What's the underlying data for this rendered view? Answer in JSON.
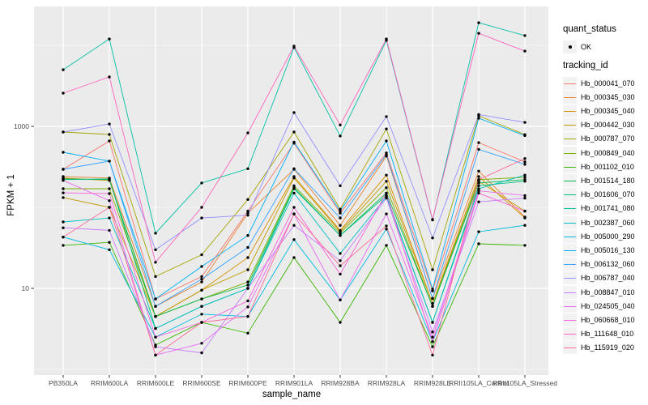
{
  "figure": {
    "x_axis_title": "sample_name",
    "y_axis_title": "FPKM + 1",
    "quant_status_legend": {
      "title": "quant_status",
      "entries": [
        {
          "label": "OK",
          "symbol": "point"
        }
      ]
    },
    "tracking_legend_title": "tracking_id",
    "panel_bg": "#ebebeb",
    "grid_color": "#ffffff",
    "tick_text_color": "#4d4d4d",
    "point_color": "#000000"
  },
  "chart_data": {
    "type": "line",
    "title": "",
    "xlabel": "sample_name",
    "ylabel": "FPKM + 1",
    "y_scale": "log10",
    "y_ticks": [
      1000,
      10
    ],
    "y_minor_ticks": [
      10000,
      100,
      1
    ],
    "ylim_log": [
      0.9,
      28000
    ],
    "grid": true,
    "legend_position": "right",
    "categories": [
      "PB350LA",
      "RRIM600LA",
      "RRIM600LE",
      "RRIM600SE",
      "RRIM600PE",
      "RRIM901LA",
      "RRIM928BA",
      "RRIM928LA",
      "RRIM928LE",
      "RRII105LA_Control",
      "RRII105LA_Stressed"
    ],
    "series": [
      {
        "name": "Hb_000041_070",
        "color": "#F8766D",
        "quant_status": "OK",
        "values": [
          295,
          660,
          7.4,
          14,
          90,
          620,
          85,
          470,
          9.3,
          630,
          365
        ]
      },
      {
        "name": "Hb_000345_030",
        "color": "#EA8331",
        "quant_status": "OK",
        "values": [
          240,
          230,
          6,
          12,
          85,
          295,
          60,
          430,
          7.5,
          280,
          76
        ]
      },
      {
        "name": "Hb_000345_040",
        "color": "#D89000",
        "quant_status": "OK",
        "values": [
          230,
          215,
          4.5,
          9.5,
          24,
          240,
          52,
          250,
          6.5,
          240,
          74
        ]
      },
      {
        "name": "Hb_000442_030",
        "color": "#C09B00",
        "quant_status": "OK",
        "values": [
          132,
          100,
          4.5,
          9.5,
          17,
          230,
          50,
          210,
          6.5,
          210,
          90
        ]
      },
      {
        "name": "Hb_000787_070",
        "color": "#A3A500",
        "quant_status": "OK",
        "values": [
          851,
          794,
          14,
          26,
          125,
          851,
          95,
          930,
          17,
          1350,
          790
        ]
      },
      {
        "name": "Hb_000849_040",
        "color": "#7CAE00",
        "quant_status": "OK",
        "values": [
          170,
          170,
          4.5,
          7.4,
          12,
          185,
          48,
          175,
          6,
          220,
          235
        ]
      },
      {
        "name": "Hb_001102_010",
        "color": "#39B600",
        "quant_status": "OK",
        "values": [
          34,
          37,
          2,
          3.8,
          2.8,
          24,
          3.8,
          34,
          1.9,
          35.5,
          34
        ]
      },
      {
        "name": "Hb_001514_180",
        "color": "#00BB4E",
        "quant_status": "OK",
        "values": [
          225,
          220,
          4.5,
          7.4,
          11,
          175,
          45,
          150,
          6,
          200,
          220
        ]
      },
      {
        "name": "Hb_001606_070",
        "color": "#00BF7D",
        "quant_status": "OK",
        "values": [
          220,
          225,
          3.2,
          6,
          10,
          170,
          45,
          140,
          3.8,
          185,
          210
        ]
      },
      {
        "name": "Hb_001741_080",
        "color": "#00C1A3",
        "quant_status": "OK",
        "values": [
          5000,
          12000,
          48,
          200,
          300,
          9400,
          760,
          11500,
          70,
          19000,
          13200
        ]
      },
      {
        "name": "Hb_002387_060",
        "color": "#00BFC4",
        "quant_status": "OK",
        "values": [
          66,
          74,
          3.2,
          6,
          10,
          150,
          27,
          135,
          3.8,
          170,
          250
        ]
      },
      {
        "name": "Hb_005000_290",
        "color": "#00BAE0",
        "quant_status": "OK",
        "values": [
          43,
          30,
          2.5,
          4.8,
          4.5,
          40,
          7.2,
          54,
          2.2,
          50,
          60
        ]
      },
      {
        "name": "Hb_005016_130",
        "color": "#00B0F6",
        "quant_status": "OK",
        "values": [
          479,
          372,
          7.4,
          18.6,
          45,
          640,
          90,
          660,
          9.8,
          1260,
          770
        ]
      },
      {
        "name": "Hb_006132_060",
        "color": "#35A2FF",
        "quant_status": "OK",
        "values": [
          295,
          372,
          6,
          13,
          32,
          300,
          74,
          450,
          7.5,
          520,
          340
        ]
      },
      {
        "name": "Hb_006787_040",
        "color": "#9590FF",
        "quant_status": "OK",
        "values": [
          851,
          1070,
          30,
          74,
          80,
          1480,
          185,
          1320,
          42,
          1400,
          1120
        ]
      },
      {
        "name": "Hb_008847_010",
        "color": "#C77CFF",
        "quant_status": "OK",
        "values": [
          56,
          52,
          1.9,
          1.6,
          10,
          60,
          22,
          130,
          2.9,
          117,
          130
        ]
      },
      {
        "name": "Hb_024505_040",
        "color": "#E76BF3",
        "quant_status": "OK",
        "values": [
          215,
          121,
          1.5,
          2.1,
          5.9,
          83,
          7.2,
          83,
          2.5,
          160,
          140
        ]
      },
      {
        "name": "Hb_060668_010",
        "color": "#FA62DB",
        "quant_status": "OK",
        "values": [
          151,
          148,
          2.5,
          3.8,
          7,
          100,
          15,
          150,
          2.2,
          150,
          90
        ]
      },
      {
        "name": "Hb_111648_010",
        "color": "#FF62BC",
        "quant_status": "OK",
        "values": [
          2570,
          4070,
          21,
          100,
          830,
          9800,
          1040,
          12000,
          71,
          14100,
          8500
        ]
      },
      {
        "name": "Hb_115919_020",
        "color": "#FF6A98",
        "quant_status": "OK",
        "values": [
          43,
          100,
          1.5,
          3.8,
          4.5,
          83,
          19,
          59,
          1.5,
          220,
          400
        ]
      }
    ]
  }
}
